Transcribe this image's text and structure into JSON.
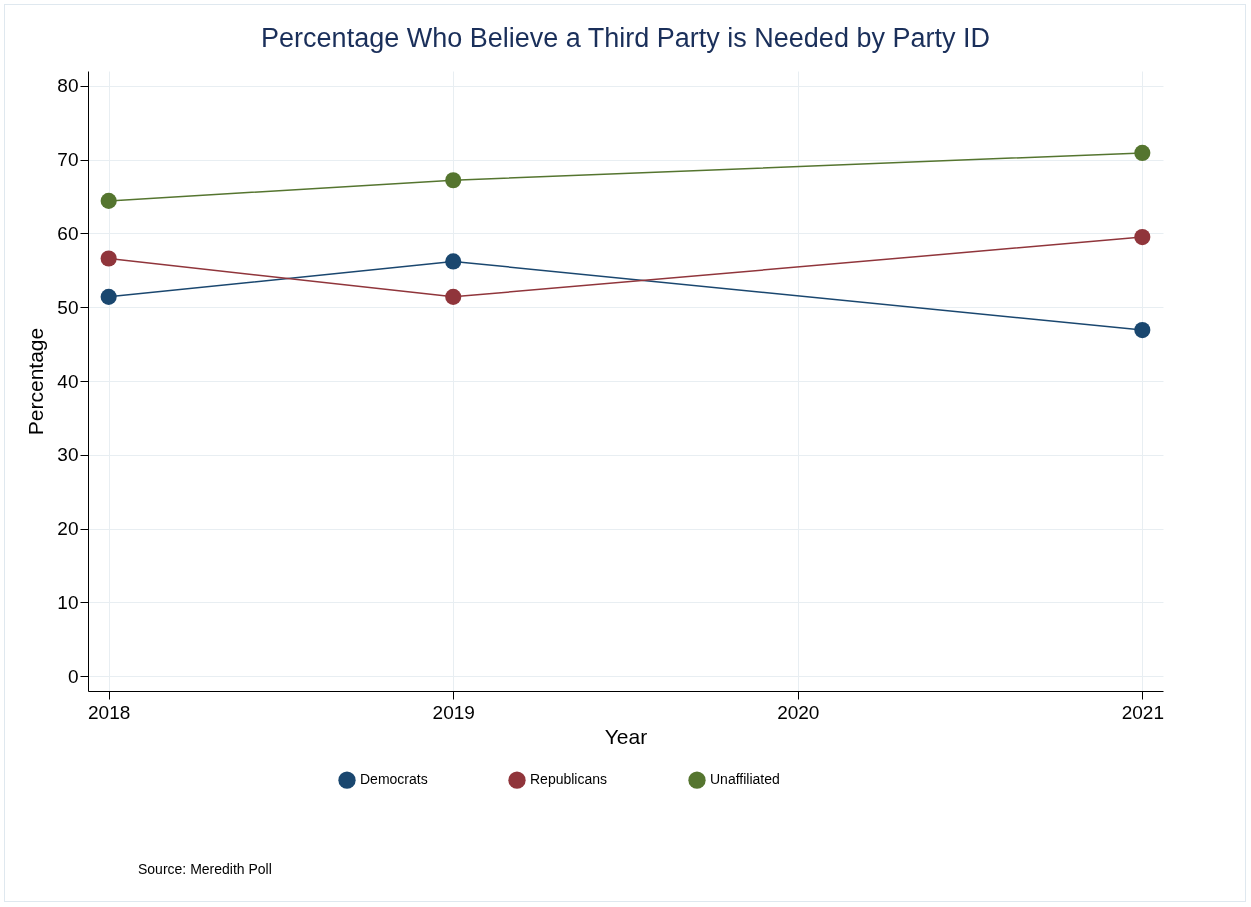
{
  "chart_data": {
    "type": "line",
    "title": "Percentage Who Believe a Third Party is Needed by Party ID",
    "xlabel": "Year",
    "ylabel": "Percentage",
    "x": [
      2018,
      2019,
      2021
    ],
    "series": [
      {
        "name": "Democrats",
        "color": "#1a476f",
        "values": [
          51.4,
          56.2,
          46.9
        ]
      },
      {
        "name": "Republicans",
        "color": "#90353b",
        "values": [
          56.6,
          51.4,
          59.5
        ]
      },
      {
        "name": "Unaffiliated",
        "color": "#55752f",
        "values": [
          64.4,
          67.2,
          70.9
        ]
      }
    ],
    "xlim": [
      2017.94,
      2021.06
    ],
    "xticks": [
      2018,
      2019,
      2020,
      2021
    ],
    "ylim": [
      -2,
      82
    ],
    "yticks": [
      0,
      10,
      20,
      30,
      40,
      50,
      60,
      70,
      80
    ],
    "grid": true,
    "legend": "bottom",
    "marker": "circle",
    "line_style": "solid",
    "annotations": [
      "Source: Meredith Poll"
    ]
  }
}
